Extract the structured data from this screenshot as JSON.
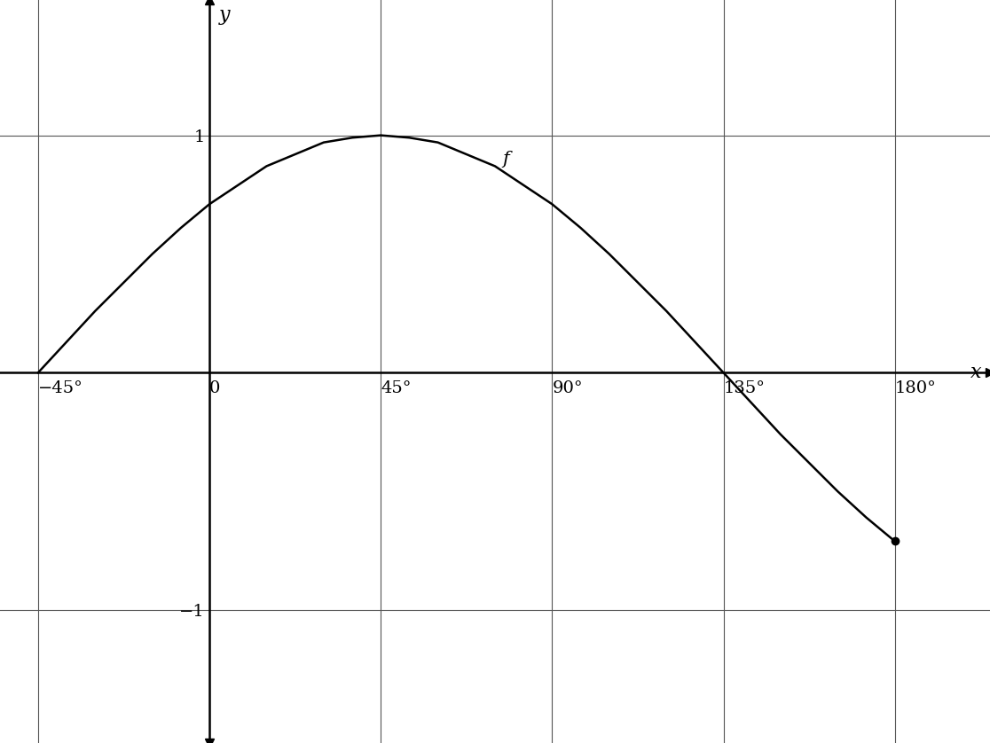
{
  "chart_data": {
    "type": "line",
    "x_label": "x",
    "y_label": "y",
    "x": [
      -45,
      -37.5,
      -30,
      -22.5,
      -15,
      -7.5,
      0,
      7.5,
      15,
      22.5,
      30,
      37.5,
      45,
      52.5,
      60,
      67.5,
      75,
      82.5,
      90,
      97.5,
      105,
      112.5,
      120,
      127.5,
      135,
      142.5,
      150,
      157.5,
      165,
      172.5,
      180
    ],
    "series": [
      {
        "name": "f",
        "color": "#000000",
        "values": [
          0,
          0.13,
          0.26,
          0.38,
          0.5,
          0.61,
          0.71,
          0.79,
          0.87,
          0.92,
          0.97,
          0.99,
          1,
          0.99,
          0.97,
          0.92,
          0.87,
          0.79,
          0.71,
          0.61,
          0.5,
          0.38,
          0.26,
          0.13,
          0,
          -0.13,
          -0.26,
          -0.38,
          -0.5,
          -0.61,
          -0.71
        ]
      }
    ],
    "xlim": [
      -55,
      205
    ],
    "ylim": [
      -1.56,
      1.57
    ],
    "xticks": [
      {
        "value": -45,
        "label": "−45°"
      },
      {
        "value": 0,
        "label": "0"
      },
      {
        "value": 45,
        "label": "45°"
      },
      {
        "value": 90,
        "label": "90°"
      },
      {
        "value": 135,
        "label": "135°"
      },
      {
        "value": 180,
        "label": "180°"
      }
    ],
    "yticks": [
      {
        "value": -1,
        "label": "−1"
      },
      {
        "value": 1,
        "label": "1"
      }
    ],
    "grid": true
  }
}
